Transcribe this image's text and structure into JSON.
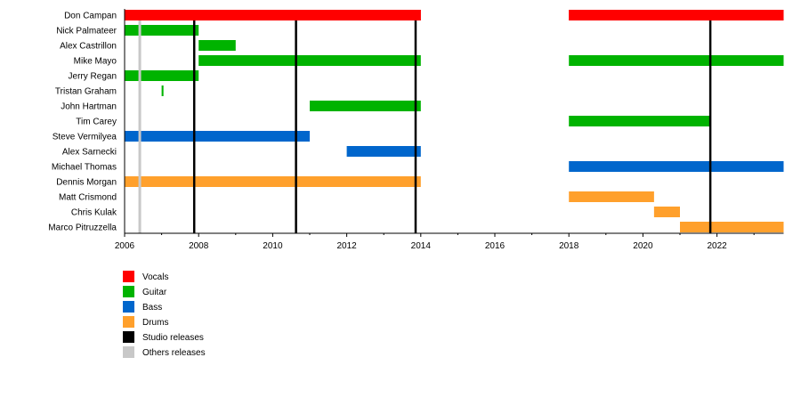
{
  "chart_data": {
    "type": "timeline",
    "xlim": [
      2006,
      2023.8
    ],
    "x_ticks": [
      2006,
      2008,
      2010,
      2012,
      2014,
      2016,
      2018,
      2020,
      2022
    ],
    "colors": {
      "Vocals": "#ff0000",
      "Guitar": "#00b300",
      "Bass": "#0066cc",
      "Drums": "#ffa02c",
      "Studio releases": "#000000",
      "Others releases": "#c8c8c8"
    },
    "members": [
      {
        "name": "Don Campan",
        "periods": [
          {
            "role": "Vocals",
            "from": 2006,
            "to": 2014
          },
          {
            "role": "Vocals",
            "from": 2018,
            "to": 2023.8
          }
        ]
      },
      {
        "name": "Nick Palmateer",
        "periods": [
          {
            "role": "Guitar",
            "from": 2006,
            "to": 2008
          }
        ]
      },
      {
        "name": "Alex Castrillon",
        "periods": [
          {
            "role": "Guitar",
            "from": 2008,
            "to": 2009
          }
        ]
      },
      {
        "name": "Mike Mayo",
        "periods": [
          {
            "role": "Guitar",
            "from": 2008,
            "to": 2014
          },
          {
            "role": "Guitar",
            "from": 2018,
            "to": 2023.8
          }
        ]
      },
      {
        "name": "Jerry Regan",
        "periods": [
          {
            "role": "Guitar",
            "from": 2006,
            "to": 2008
          }
        ]
      },
      {
        "name": "Tristan Graham",
        "periods": [
          {
            "role": "Guitar",
            "from": 2007,
            "to": 2007.05
          }
        ]
      },
      {
        "name": "John Hartman",
        "periods": [
          {
            "role": "Guitar",
            "from": 2011,
            "to": 2014
          }
        ]
      },
      {
        "name": "Tim Carey",
        "periods": [
          {
            "role": "Guitar",
            "from": 2018,
            "to": 2021.8
          }
        ]
      },
      {
        "name": "Steve Vermilyea",
        "periods": [
          {
            "role": "Bass",
            "from": 2006,
            "to": 2011
          }
        ]
      },
      {
        "name": "Alex Sarnecki",
        "periods": [
          {
            "role": "Bass",
            "from": 2012,
            "to": 2014
          }
        ]
      },
      {
        "name": "Michael Thomas",
        "periods": [
          {
            "role": "Bass",
            "from": 2018,
            "to": 2023.8
          }
        ]
      },
      {
        "name": "Dennis Morgan",
        "periods": [
          {
            "role": "Drums",
            "from": 2006,
            "to": 2014
          }
        ]
      },
      {
        "name": "Matt Crismond",
        "periods": [
          {
            "role": "Drums",
            "from": 2018,
            "to": 2020.3
          }
        ]
      },
      {
        "name": "Chris Kulak",
        "periods": [
          {
            "role": "Drums",
            "from": 2020.3,
            "to": 2021
          }
        ]
      },
      {
        "name": "Marco Pitruzzella",
        "periods": [
          {
            "role": "Drums",
            "from": 2021,
            "to": 2023.8
          }
        ]
      }
    ],
    "studio_releases": [
      2007.88,
      2010.63,
      2013.86,
      2021.82
    ],
    "other_releases": [
      2006.41
    ],
    "legend": {
      "placement": "bottom-left",
      "entries": [
        "Vocals",
        "Guitar",
        "Bass",
        "Drums",
        "Studio releases",
        "Others releases"
      ]
    }
  }
}
